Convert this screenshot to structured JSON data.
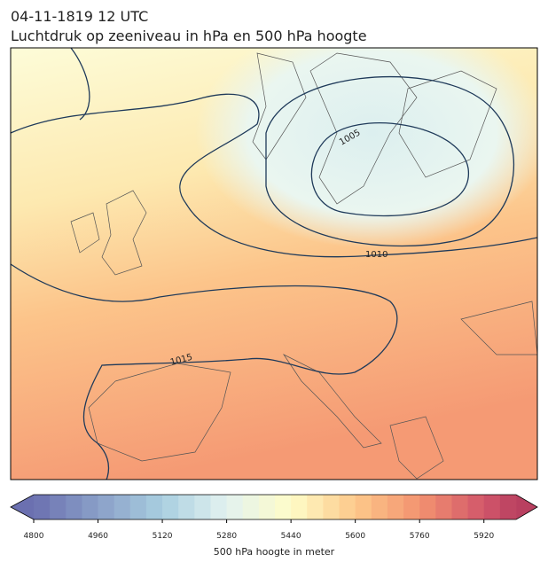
{
  "header": {
    "title": "04-11-1819 12 UTC",
    "subtitle": "Luchtdruk op zeeniveau in hPa en 500 hPa hoogte"
  },
  "contour_labels": [
    "1005",
    "1010",
    "1015"
  ],
  "colorbar": {
    "label": "500 hPa hoogte in meter",
    "lim": [
      4800,
      6000
    ],
    "step": 40,
    "ticks": [
      4800,
      4960,
      5120,
      5280,
      5440,
      5600,
      5760,
      5920
    ],
    "color_stops": [
      [
        4800,
        "#6b70b0"
      ],
      [
        5120,
        "#a9cfe0"
      ],
      [
        5280,
        "#e3f2f0"
      ],
      [
        5440,
        "#fefcc8"
      ],
      [
        5600,
        "#fdc98a"
      ],
      [
        5760,
        "#f39270"
      ],
      [
        5920,
        "#d2566a"
      ],
      [
        6000,
        "#b94060"
      ]
    ]
  }
}
